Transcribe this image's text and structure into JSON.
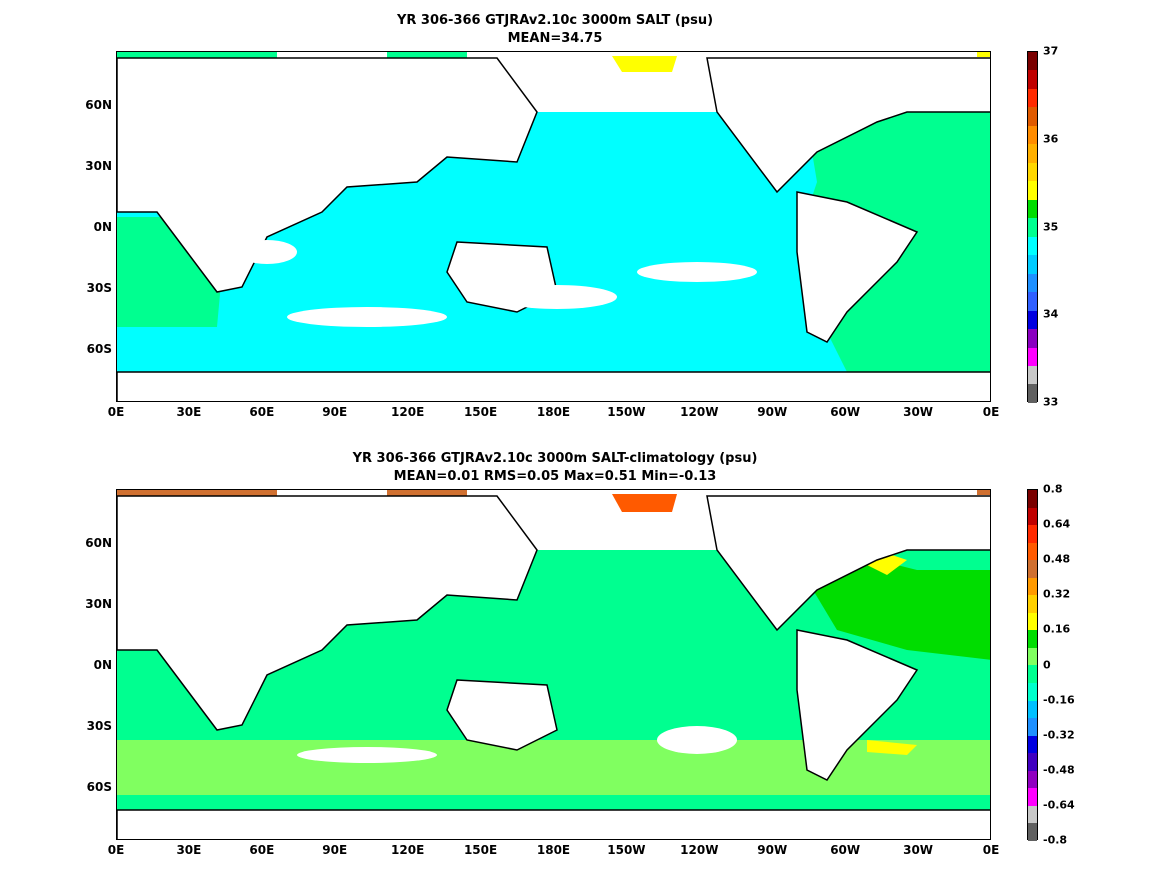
{
  "panels": [
    {
      "title_line1": "YR 306-366 GTJRAv2.10c 3000m SALT (psu)",
      "title_line2": "MEAN=34.75",
      "colorbar": {
        "labels": [
          "37",
          "36",
          "35",
          "34",
          "33"
        ],
        "colors": [
          "#7a0000",
          "#c00000",
          "#ff2a00",
          "#e05a00",
          "#ff8c00",
          "#ffb000",
          "#ffd700",
          "#ffff00",
          "#00dd00",
          "#00ff90",
          "#00ffff",
          "#00ccff",
          "#1e90ff",
          "#3060ff",
          "#0000e0",
          "#8a00c0",
          "#ff00ff",
          "#c8c8c8",
          "#606060"
        ]
      }
    },
    {
      "title_line1": "YR 306-366 GTJRAv2.10c 3000m SALT-climatology (psu)",
      "title_line2": "MEAN=0.01   RMS=0.05   Max=0.51   Min=-0.13",
      "colorbar": {
        "labels": [
          "0.8",
          "0.64",
          "0.48",
          "0.32",
          "0.16",
          "0",
          "-0.16",
          "-0.32",
          "-0.48",
          "-0.64",
          "-0.8"
        ],
        "colors": [
          "#7a0000",
          "#c00000",
          "#ff2a00",
          "#ff5a00",
          "#d07030",
          "#ff9a00",
          "#ffd000",
          "#ffff00",
          "#00dd00",
          "#80ff60",
          "#00ff90",
          "#00ffcc",
          "#00c0ff",
          "#1e90ff",
          "#0000e0",
          "#4000c0",
          "#9000c0",
          "#ff00ff",
          "#c8c8c8",
          "#606060"
        ]
      }
    }
  ],
  "x_ticks": [
    "0E",
    "30E",
    "60E",
    "90E",
    "120E",
    "150E",
    "180E",
    "150W",
    "120W",
    "90W",
    "60W",
    "30W",
    "0E"
  ],
  "y_ticks": [
    "60N",
    "30N",
    "0N",
    "30S",
    "60S"
  ],
  "colors": {
    "cyan_fill": "#00ffff",
    "green_fill": "#00ff90",
    "light_green_fill": "#80ff60",
    "bright_green_fill": "#00dd00",
    "yellow_fill": "#ffff00",
    "orange_fill": "#ff5a00",
    "brown_fill": "#d07030",
    "land": "#ffffff",
    "coast": "#000000"
  }
}
